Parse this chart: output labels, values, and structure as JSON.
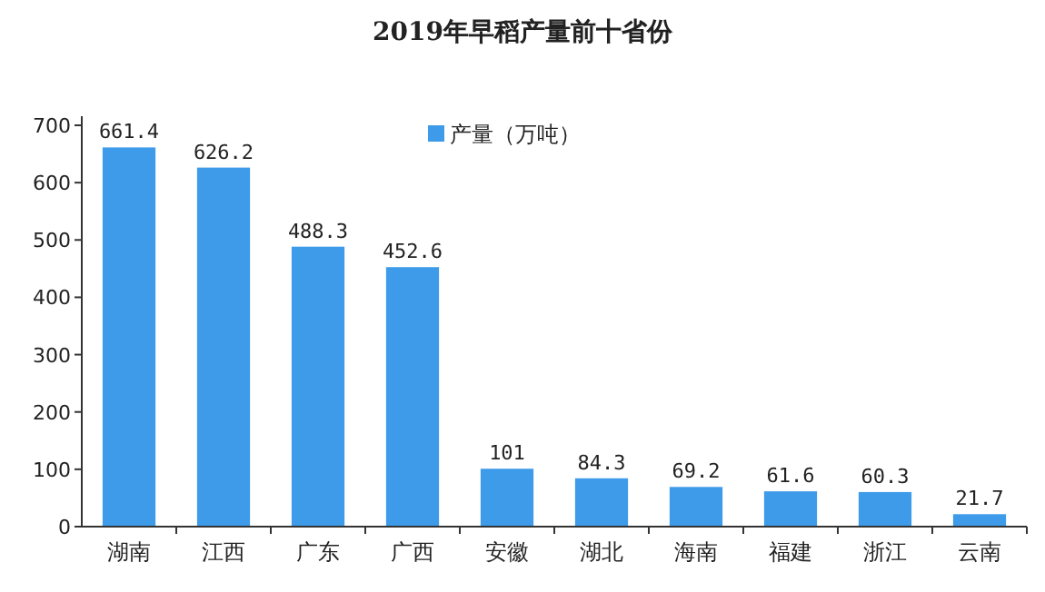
{
  "chart_data": {
    "type": "bar",
    "title": "2019年早稻产量前十省份",
    "categories": [
      "湖南",
      "江西",
      "广东",
      "广西",
      "安徽",
      "湖北",
      "海南",
      "福建",
      "浙江",
      "云南"
    ],
    "series": [
      {
        "name": "产量（万吨）",
        "color": "#3d9be9",
        "values": [
          661.4,
          626.2,
          488.3,
          452.6,
          101,
          84.3,
          69.2,
          61.6,
          60.3,
          21.7
        ]
      }
    ],
    "ylim": [
      0,
      700
    ],
    "yticks": [
      0,
      100,
      200,
      300,
      400,
      500,
      600,
      700
    ],
    "data_labels": true,
    "legend": "top",
    "grid": false
  }
}
